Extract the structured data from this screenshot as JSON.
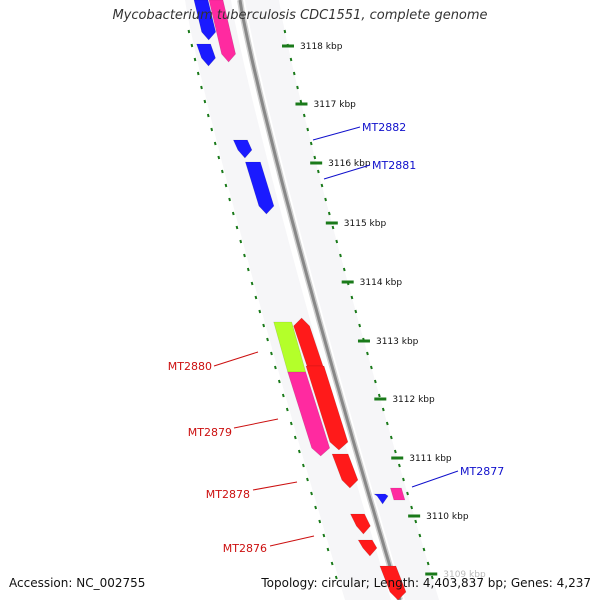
{
  "title": "Mycobacterium tuberculosis CDC1551, complete genome",
  "footer": {
    "accession": "Accession: NC_002755",
    "summary": "Topology: circular; Length: 4,403,837 bp; Genes: 4,237"
  },
  "colors": {
    "backbone": "#888888",
    "ticks": "#1a7a1a",
    "forward_label": "#1010cc",
    "reverse_label": "#cc1010",
    "gene_blue": "#1a1aff",
    "gene_red": "#ff1a1a",
    "gene_pink": "#ff2aa0",
    "gene_lime": "#b4ff2a"
  },
  "scale_ticks": [
    {
      "label": "3118 kbp",
      "kbp": 3118
    },
    {
      "label": "3117 kbp",
      "kbp": 3117
    },
    {
      "label": "3116 kbp",
      "kbp": 3116
    },
    {
      "label": "3115 kbp",
      "kbp": 3115
    },
    {
      "label": "3114 kbp",
      "kbp": 3114
    },
    {
      "label": "3113 kbp",
      "kbp": 3113
    },
    {
      "label": "3112 kbp",
      "kbp": 3112
    },
    {
      "label": "3111 kbp",
      "kbp": 3111
    },
    {
      "label": "3110 kbp",
      "kbp": 3110
    },
    {
      "label": "3109 kbp",
      "kbp": 3109
    }
  ],
  "gene_labels": [
    {
      "name": "MT2882",
      "strand": "forward"
    },
    {
      "name": "MT2881",
      "strand": "forward"
    },
    {
      "name": "MT2877",
      "strand": "forward"
    },
    {
      "name": "MT2880",
      "strand": "reverse"
    },
    {
      "name": "MT2879",
      "strand": "reverse"
    },
    {
      "name": "MT2878",
      "strand": "reverse"
    },
    {
      "name": "MT2876",
      "strand": "reverse"
    }
  ]
}
